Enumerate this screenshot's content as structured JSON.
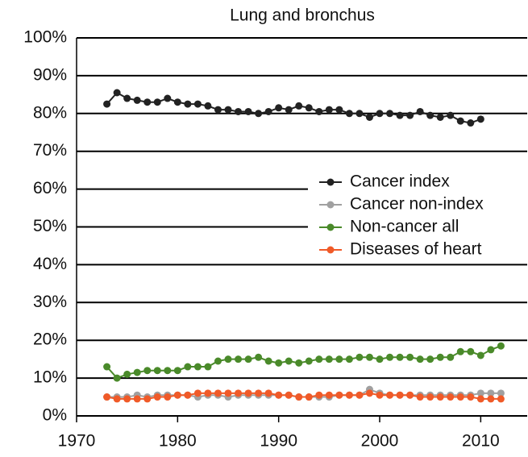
{
  "chart_data": {
    "type": "line",
    "title": "Lung and bronchus",
    "x": [
      1973,
      1974,
      1975,
      1976,
      1977,
      1978,
      1979,
      1980,
      1981,
      1982,
      1983,
      1984,
      1985,
      1986,
      1987,
      1988,
      1989,
      1990,
      1991,
      1992,
      1993,
      1994,
      1995,
      1996,
      1997,
      1998,
      1999,
      2000,
      2001,
      2002,
      2003,
      2004,
      2005,
      2006,
      2007,
      2008,
      2009,
      2010,
      2011,
      2012
    ],
    "series": [
      {
        "name": "Cancer index",
        "color": "#222222",
        "values": [
          82.5,
          85.5,
          84,
          83.5,
          83,
          83,
          84,
          83,
          82.5,
          82.5,
          82,
          81,
          81,
          80.5,
          80.5,
          80,
          80.5,
          81.5,
          81,
          82,
          81.5,
          80.5,
          81,
          81,
          80,
          80,
          79,
          80,
          80,
          79.5,
          79.5,
          80.5,
          79.5,
          79,
          79.5,
          78,
          77.5,
          78.5,
          null,
          null
        ]
      },
      {
        "name": "Cancer non-index",
        "color": "#a0a0a0",
        "values": [
          5,
          5,
          5,
          5.5,
          5,
          5.5,
          5.5,
          5.5,
          5.5,
          5,
          5.5,
          5.5,
          5,
          5.5,
          5.5,
          5.5,
          5.5,
          5.5,
          5.5,
          5,
          5,
          5,
          5,
          5.5,
          5.5,
          5.5,
          7,
          6,
          5.5,
          5.5,
          5.5,
          5.5,
          5.5,
          5.5,
          5.5,
          5.5,
          5.5,
          6,
          6,
          6
        ]
      },
      {
        "name": "Non-cancer all",
        "color": "#4a8a2a",
        "values": [
          13,
          10,
          11,
          11.5,
          12,
          12,
          12,
          12,
          13,
          13,
          13,
          14.5,
          15,
          15,
          15,
          15.5,
          14.5,
          14,
          14.5,
          14,
          14.5,
          15,
          15,
          15,
          15,
          15.5,
          15.5,
          15,
          15.5,
          15.5,
          15.5,
          15,
          15,
          15.5,
          15.5,
          17,
          17,
          16,
          17.5,
          18.5
        ]
      },
      {
        "name": "Diseases of heart",
        "color": "#f05a28",
        "values": [
          5,
          4.5,
          4.5,
          4.5,
          4.5,
          5,
          5,
          5.5,
          5.5,
          6,
          6,
          6,
          6,
          6,
          6,
          6,
          6,
          5.5,
          5.5,
          5,
          5,
          5.5,
          5.5,
          5.5,
          5.5,
          5.5,
          6,
          5.5,
          5.5,
          5.5,
          5.5,
          5,
          5,
          5,
          5,
          5,
          5,
          4.5,
          4.5,
          4.5
        ]
      }
    ],
    "xlim": [
      1970,
      2014.6
    ],
    "xticks": [
      1970,
      1980,
      1990,
      2000,
      2010
    ],
    "ylim": [
      0,
      100
    ],
    "yticks": [
      {
        "value": 0,
        "label": "0%"
      },
      {
        "value": 10,
        "label": "10%"
      },
      {
        "value": 20,
        "label": "20%"
      },
      {
        "value": 30,
        "label": "30%"
      },
      {
        "value": 40,
        "label": "40%"
      },
      {
        "value": 50,
        "label": "50%"
      },
      {
        "value": 60,
        "label": "60%"
      },
      {
        "value": 70,
        "label": "70%"
      },
      {
        "value": 80,
        "label": "80%"
      },
      {
        "value": 90,
        "label": "90%"
      },
      {
        "value": 100,
        "label": "100%"
      }
    ],
    "grid": true,
    "legend": "right"
  }
}
